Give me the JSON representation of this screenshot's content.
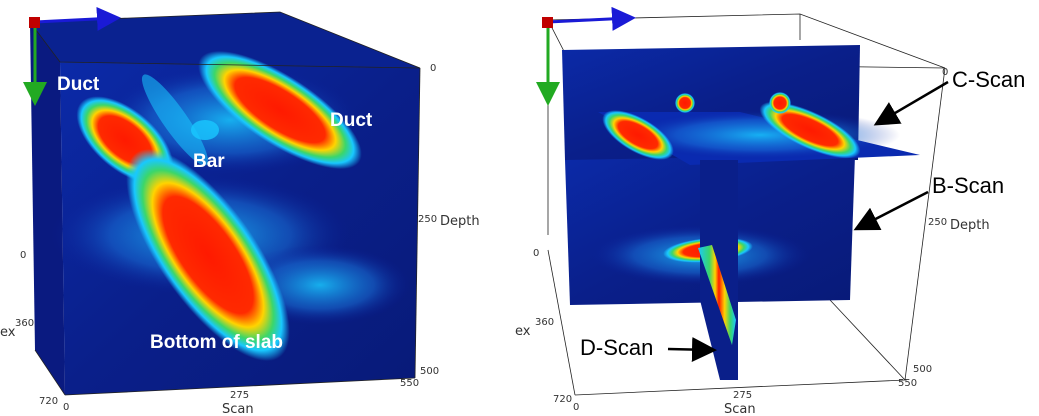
{
  "colors": {
    "background_blue": "#0a1a9a",
    "hot": "#ff1a00",
    "warm": "#ffd400",
    "mid": "#3bd66a",
    "cool": "#19c8ff",
    "axis_x": "#1a1ad6",
    "axis_y": "#22aa22",
    "origin": "#c00000"
  },
  "left_panel": {
    "labels": {
      "duct_left": "Duct",
      "duct_right": "Duct",
      "bar": "Bar",
      "bottom": "Bottom of slab"
    },
    "ticks": {
      "depth_0": "0",
      "depth_250": "250",
      "depth_label": "Depth",
      "index_0": "0",
      "index_360": "360",
      "index_720": "720",
      "index_cut": "ex",
      "scan_0": "0",
      "scan_275": "275",
      "scan_550": "550",
      "scan_500": "500",
      "scan_label": "Scan"
    }
  },
  "right_panel": {
    "callouts": {
      "c_scan": "C-Scan",
      "b_scan": "B-Scan",
      "d_scan": "D-Scan"
    },
    "ticks": {
      "depth_0": "0",
      "depth_250": "250",
      "depth_label": "Depth",
      "index_0": "0",
      "index_360": "360",
      "index_720": "720",
      "index_cut": "ex",
      "scan_0": "0",
      "scan_275": "275",
      "scan_550": "550",
      "scan_500": "500",
      "scan_label": "Scan"
    }
  }
}
